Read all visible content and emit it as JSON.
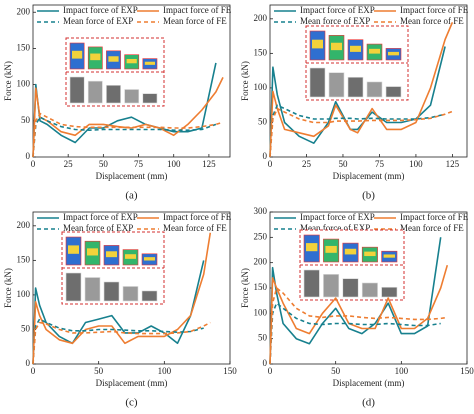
{
  "chart_data": [
    {
      "type": "line",
      "caption": "(a)",
      "xlabel": "Displacement (mm)",
      "ylabel": "Force (kN)",
      "legend": "top",
      "x": [
        0,
        2,
        5,
        10,
        20,
        30,
        40,
        50,
        60,
        70,
        80,
        90,
        100,
        110,
        120,
        130,
        135
      ],
      "xlim": [
        0,
        140
      ],
      "xticks": [
        0,
        25,
        50,
        75,
        100,
        125
      ],
      "ylim": [
        0,
        210
      ],
      "yticks": [
        0,
        50,
        100,
        150,
        200
      ],
      "series": [
        {
          "name": "Impact force of EXP",
          "color": "#17808e",
          "dashed": false,
          "values": [
            0,
            100,
            50,
            45,
            30,
            20,
            40,
            40,
            50,
            55,
            45,
            40,
            35,
            35,
            40,
            130,
            null
          ]
        },
        {
          "name": "Impact force of FE",
          "color": "#ee7d31",
          "dashed": false,
          "values": [
            0,
            95,
            55,
            50,
            35,
            30,
            45,
            45,
            42,
            40,
            45,
            40,
            30,
            45,
            65,
            90,
            110
          ]
        },
        {
          "name": "Mean force of EXP",
          "color": "#17808e",
          "dashed": true,
          "values": [
            0,
            45,
            55,
            50,
            42,
            38,
            37,
            38,
            38,
            38,
            38,
            38,
            37,
            37,
            38,
            45,
            null
          ]
        },
        {
          "name": "Mean force of FE",
          "color": "#ee7d31",
          "dashed": true,
          "values": [
            0,
            50,
            60,
            55,
            45,
            42,
            41,
            41,
            41,
            41,
            41,
            41,
            40,
            40,
            42,
            45,
            48
          ]
        }
      ]
    },
    {
      "type": "line",
      "caption": "(b)",
      "xlabel": "Displacement (mm)",
      "ylabel": "Force (kN)",
      "legend": "top",
      "x": [
        0,
        2,
        5,
        10,
        20,
        30,
        40,
        45,
        55,
        60,
        70,
        80,
        90,
        100,
        110,
        120,
        125
      ],
      "xlim": [
        0,
        135
      ],
      "xticks": [
        0,
        25,
        50,
        75,
        100,
        125
      ],
      "ylim": [
        0,
        220
      ],
      "yticks": [
        0,
        50,
        100,
        150,
        200
      ],
      "series": [
        {
          "name": "Impact force of EXP",
          "color": "#17808e",
          "dashed": false,
          "values": [
            0,
            130,
            90,
            50,
            30,
            20,
            50,
            80,
            40,
            40,
            65,
            50,
            50,
            55,
            75,
            160,
            null
          ]
        },
        {
          "name": "Impact force of FE",
          "color": "#ee7d31",
          "dashed": false,
          "values": [
            0,
            95,
            70,
            40,
            35,
            30,
            45,
            75,
            40,
            35,
            70,
            40,
            40,
            50,
            100,
            170,
            195
          ]
        },
        {
          "name": "Mean force of EXP",
          "color": "#17808e",
          "dashed": true,
          "values": [
            0,
            60,
            75,
            70,
            60,
            55,
            55,
            56,
            56,
            55,
            56,
            55,
            55,
            55,
            57,
            62,
            null
          ]
        },
        {
          "name": "Mean force of FE",
          "color": "#ee7d31",
          "dashed": true,
          "values": [
            0,
            55,
            70,
            65,
            55,
            50,
            50,
            52,
            52,
            52,
            53,
            53,
            53,
            54,
            56,
            62,
            66
          ]
        }
      ]
    },
    {
      "type": "line",
      "caption": "(c)",
      "xlabel": "Displacement (mm)",
      "ylabel": "Force (kN)",
      "legend": "top",
      "x": [
        0,
        2,
        5,
        10,
        20,
        30,
        40,
        50,
        60,
        70,
        80,
        90,
        100,
        110,
        120,
        130,
        135
      ],
      "xlim": [
        0,
        150
      ],
      "xticks": [
        0,
        50,
        100,
        150
      ],
      "ylim": [
        0,
        220
      ],
      "yticks": [
        0,
        50,
        100,
        150,
        200
      ],
      "series": [
        {
          "name": "Impact force of EXP",
          "color": "#17808e",
          "dashed": false,
          "values": [
            0,
            110,
            85,
            60,
            40,
            30,
            60,
            65,
            70,
            45,
            45,
            55,
            45,
            30,
            70,
            150,
            null
          ]
        },
        {
          "name": "Impact force of FE",
          "color": "#ee7d31",
          "dashed": false,
          "values": [
            0,
            90,
            70,
            50,
            35,
            30,
            50,
            55,
            55,
            30,
            40,
            40,
            40,
            50,
            70,
            130,
            190
          ]
        },
        {
          "name": "Mean force of EXP",
          "color": "#17808e",
          "dashed": true,
          "values": [
            0,
            55,
            65,
            60,
            52,
            48,
            48,
            50,
            50,
            49,
            48,
            48,
            47,
            46,
            47,
            52,
            null
          ]
        },
        {
          "name": "Mean force of FE",
          "color": "#ee7d31",
          "dashed": true,
          "values": [
            0,
            50,
            60,
            58,
            50,
            45,
            45,
            46,
            47,
            45,
            44,
            44,
            44,
            45,
            47,
            55,
            60
          ]
        }
      ]
    },
    {
      "type": "line",
      "caption": "(d)",
      "xlabel": "Displacement (mm)",
      "ylabel": "Force (kN)",
      "legend": "top",
      "x": [
        0,
        2,
        5,
        10,
        20,
        30,
        40,
        50,
        60,
        70,
        80,
        90,
        100,
        110,
        120,
        130,
        135
      ],
      "xlim": [
        0,
        150
      ],
      "xticks": [
        0,
        50,
        100,
        150
      ],
      "ylim": [
        0,
        300
      ],
      "yticks": [
        0,
        50,
        100,
        150,
        200,
        250,
        300
      ],
      "series": [
        {
          "name": "Impact force of EXP",
          "color": "#17808e",
          "dashed": false,
          "values": [
            0,
            190,
            140,
            80,
            50,
            40,
            80,
            110,
            70,
            60,
            80,
            120,
            60,
            60,
            75,
            250,
            null
          ]
        },
        {
          "name": "Impact force of FE",
          "color": "#ee7d31",
          "dashed": false,
          "values": [
            0,
            170,
            150,
            120,
            70,
            60,
            100,
            130,
            80,
            70,
            70,
            130,
            70,
            70,
            90,
            150,
            195
          ]
        },
        {
          "name": "Mean force of EXP",
          "color": "#17808e",
          "dashed": true,
          "values": [
            0,
            100,
            120,
            110,
            90,
            80,
            78,
            80,
            80,
            78,
            78,
            80,
            78,
            76,
            76,
            80,
            null
          ]
        },
        {
          "name": "Mean force of FE",
          "color": "#ee7d31",
          "dashed": true,
          "values": [
            0,
            120,
            150,
            140,
            110,
            95,
            92,
            95,
            95,
            92,
            90,
            92,
            90,
            88,
            88,
            90,
            92
          ]
        }
      ]
    }
  ]
}
